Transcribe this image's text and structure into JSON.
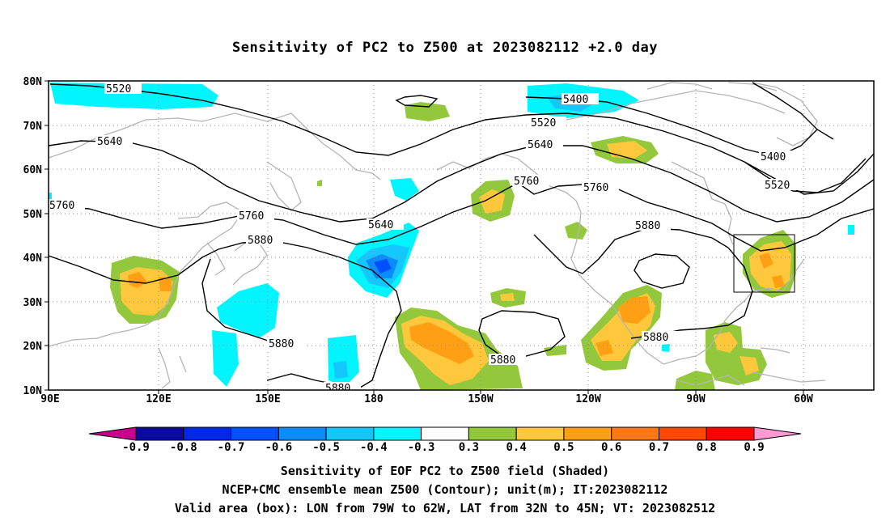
{
  "title": "Sensitivity of PC2 to Z500 at 2023082112 +2.0 day",
  "axes": {
    "lat_labels": [
      "80N",
      "70N",
      "60N",
      "50N",
      "40N",
      "30N",
      "20N",
      "10N"
    ],
    "lon_labels": [
      "90E",
      "120E",
      "150E",
      "180",
      "150W",
      "120W",
      "90W",
      "60W"
    ]
  },
  "contour_labels": [
    "5520",
    "5400",
    "5520",
    "5640",
    "5640",
    "5400",
    "5520",
    "5760",
    "5760",
    "5760",
    "5640",
    "5760",
    "5880",
    "5880",
    "5880",
    "5880",
    "5880",
    "5880"
  ],
  "colorbar": {
    "labels": [
      "-0.9",
      "-0.8",
      "-0.7",
      "-0.6",
      "-0.5",
      "-0.4",
      "-0.3",
      "0.3",
      "0.4",
      "0.5",
      "0.6",
      "0.7",
      "0.8",
      "0.9"
    ],
    "colors": [
      "#0a0aa0",
      "#0028e6",
      "#0050ff",
      "#0a8cff",
      "#14c8ff",
      "#00f5ff",
      "#ffffff",
      "#94c83c",
      "#ffc83c",
      "#ffa014",
      "#ff7814",
      "#ff4600",
      "#ff0000"
    ],
    "low_arrow_color": "#c8008c",
    "high_arrow_color": "#ff9bd2"
  },
  "colors": {
    "land": "#b4b4b4",
    "grid": "#8c8c8c",
    "contour": "#000000"
  },
  "footer": {
    "line1": "Sensitivity of EOF PC2 to Z500 field (Shaded)",
    "line2": "NCEP+CMC ensemble mean Z500 (Contour); unit(m); IT:2023082112",
    "line3": "Valid area (box): LON from 79W to 62W, LAT from 32N to 45N; VT: 2023082512"
  }
}
